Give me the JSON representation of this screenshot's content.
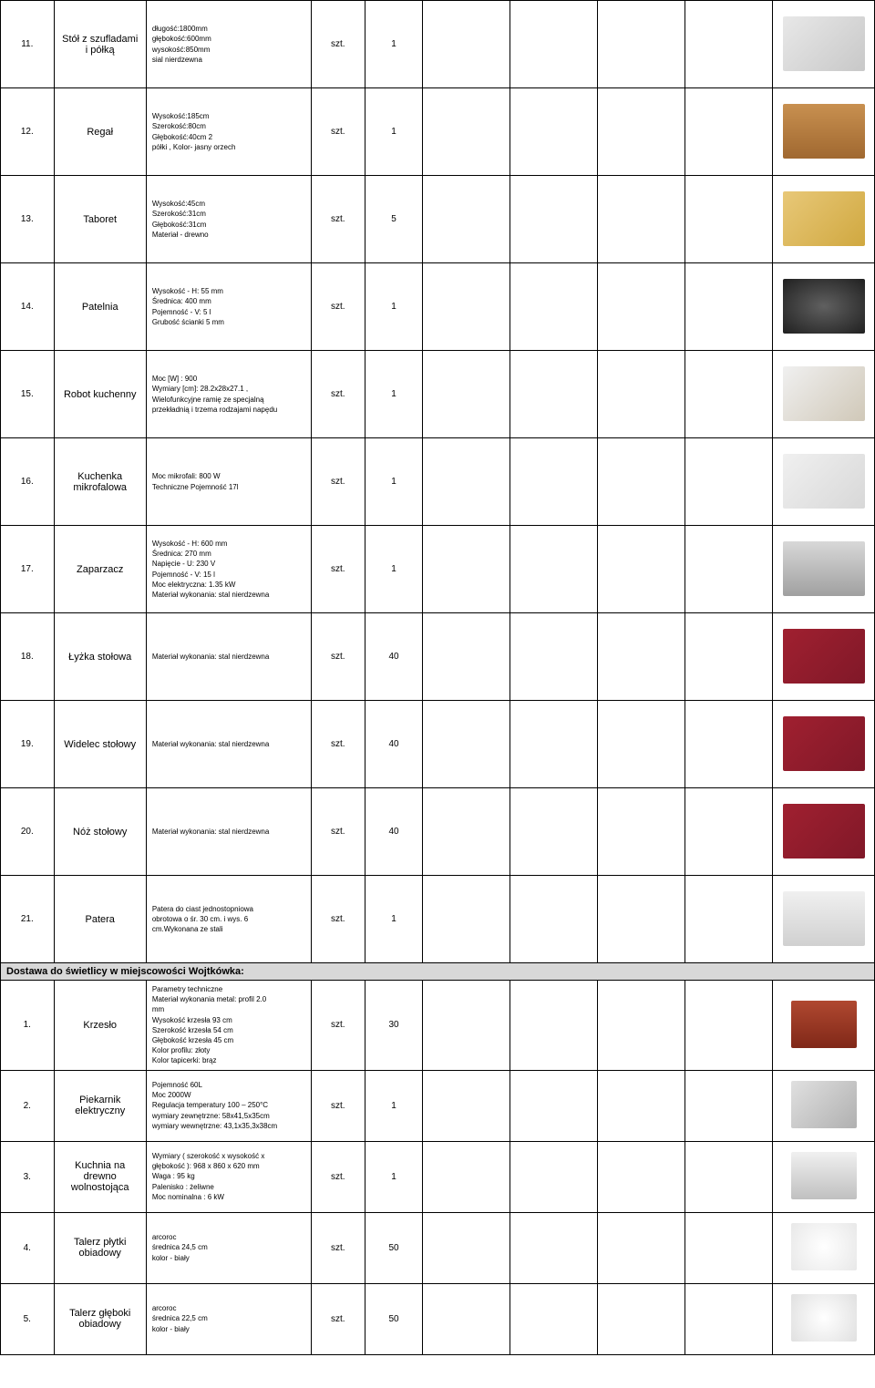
{
  "rows": [
    {
      "num": "11.",
      "name": "Stół z szufladami i półką",
      "spec": "długość:1800mm\ngłębokość:600mm\nwysokość:850mm\nsial nierdzewna",
      "unit": "szt.",
      "qty": "1",
      "imgBg": "linear-gradient(135deg,#e8e8e8,#c8c8c8)"
    },
    {
      "num": "12.",
      "name": "Regał",
      "spec": "Wysokość:185cm\nSzerokość:80cm\nGłębokość:40cm                        2\npółki    , Kolor- jasny orzech",
      "unit": "szt.",
      "qty": "1",
      "imgBg": "linear-gradient(180deg,#c89050,#a06830)"
    },
    {
      "num": "13.",
      "name": "Taboret",
      "spec": "Wysokość:45cm\nSzerokość:31cm\nGłębokość:31cm\nMateriał - drewno",
      "unit": "szt.",
      "qty": "5",
      "imgBg": "linear-gradient(135deg,#e8c878,#d0a840)"
    },
    {
      "num": "14.",
      "name": "Patelnia",
      "spec": "Wysokość - H: 55 mm\nŚrednica: 400 mm\nPojemność - V: 5 l\nGrubość ścianki 5 mm",
      "unit": "szt.",
      "qty": "1",
      "imgBg": "radial-gradient(ellipse,#606060,#202020)"
    },
    {
      "num": "15.",
      "name": "Robot kuchenny",
      "spec": "Moc [W] :  900\nWymiary [cm]: 28.2x28x27.1 ,\nWielofunkcyjne ramię ze specjalną\nprzekładnią i trzema rodzajami napędu",
      "unit": "szt.",
      "qty": "1",
      "imgBg": "linear-gradient(135deg,#f0f0f0,#d0c8b8)"
    },
    {
      "num": "16.",
      "name": "Kuchenka mikrofalowa",
      "spec": "Moc mikrofali: 800 W\nTechniczne  Pojemność 17l",
      "unit": "szt.",
      "qty": "1",
      "imgBg": "linear-gradient(135deg,#f0f0f0,#d8d8d8)"
    },
    {
      "num": "17.",
      "name": "Zaparzacz",
      "spec": "Wysokość - H: 600 mm\nŚrednica: 270 mm\nNapięcie - U: 230 V\nPojemność - V: 15 l\nMoc elektryczna: 1.35 kW\nMateriał wykonania: stal nierdzewna",
      "unit": "szt.",
      "qty": "1",
      "imgBg": "linear-gradient(180deg,#d8d8d8,#a0a0a0)"
    },
    {
      "num": "18.",
      "name": "Łyżka stołowa",
      "spec": "Materiał wykonania: stal nierdzewna",
      "unit": "szt.",
      "qty": "40",
      "imgBg": "linear-gradient(135deg,#a02030,#801828)"
    },
    {
      "num": "19.",
      "name": "Widelec stołowy",
      "spec": "Materiał wykonania: stal nierdzewna",
      "unit": "szt.",
      "qty": "40",
      "imgBg": "linear-gradient(135deg,#a02030,#801828)"
    },
    {
      "num": "20.",
      "name": "Nóż stołowy",
      "spec": "Materiał wykonania: stal nierdzewna",
      "unit": "szt.",
      "qty": "40",
      "imgBg": "linear-gradient(135deg,#a02030,#801828)"
    },
    {
      "num": "21.",
      "name": "Patera",
      "spec": "Patera do ciast jednostopniowa\nobrotowa o śr. 30 cm. i wys. 6\ncm.Wykonana ze stali",
      "unit": "szt.",
      "qty": "1",
      "imgBg": "linear-gradient(180deg,#f0f0f0,#d0d0d0)"
    }
  ],
  "sectionHeader": "Dostawa do świetlicy w miejscowości Wojtkówka:",
  "subRows": [
    {
      "num": "1.",
      "name": "Krzesło",
      "spec": "Parametry techniczne\n Materiał wykonania metal: profil 2.0\nmm\n Wysokość krzesła 93 cm\n Szerokość krzesła 54 cm\n Głębokość krzesła 45 cm\nKolor profilu: złoty\nKolor tapicerki: brąz",
      "unit": "szt.",
      "qty": "30",
      "imgBg": "linear-gradient(180deg,#b04830,#802818)"
    },
    {
      "num": "2.",
      "name": "Piekarnik elektryczny",
      "spec": "Pojemność 60L\nMoc 2000W\nRegulacja temperatury 100 – 250°C\nwymiary zewnętrzne: 58x41,5x35cm\nwymiary wewnętrzne: 43,1x35,3x38cm",
      "unit": "szt.",
      "qty": "1",
      "imgBg": "linear-gradient(135deg,#e0e0e0,#b0b0b0)"
    },
    {
      "num": "3.",
      "name": "Kuchnia na drewno wolnostojąca",
      "spec": "Wymiary ( szerokość x wysokość x\ngłębokość ): 968 x 860 x 620 mm\nWaga : 95 kg\nPalenisko : żeliwne\nMoc nominalna : 6 kW",
      "unit": "szt.",
      "qty": "1",
      "imgBg": "linear-gradient(180deg,#f0f0f0,#c0c0c0)"
    },
    {
      "num": "4.",
      "name": "Talerz płytki obiadowy",
      "spec": "arcoroc\nśrednica  24,5 cm\nkolor - biały",
      "unit": "szt.",
      "qty": "50",
      "imgBg": "radial-gradient(circle,#ffffff,#e8e8e8)"
    },
    {
      "num": "5.",
      "name": "Talerz głęboki obiadowy",
      "spec": "arcoroc\nśrednica 22,5 cm\nkolor - biały",
      "unit": "szt.",
      "qty": "50",
      "imgBg": "radial-gradient(circle,#ffffff,#e0e0e0)"
    }
  ]
}
